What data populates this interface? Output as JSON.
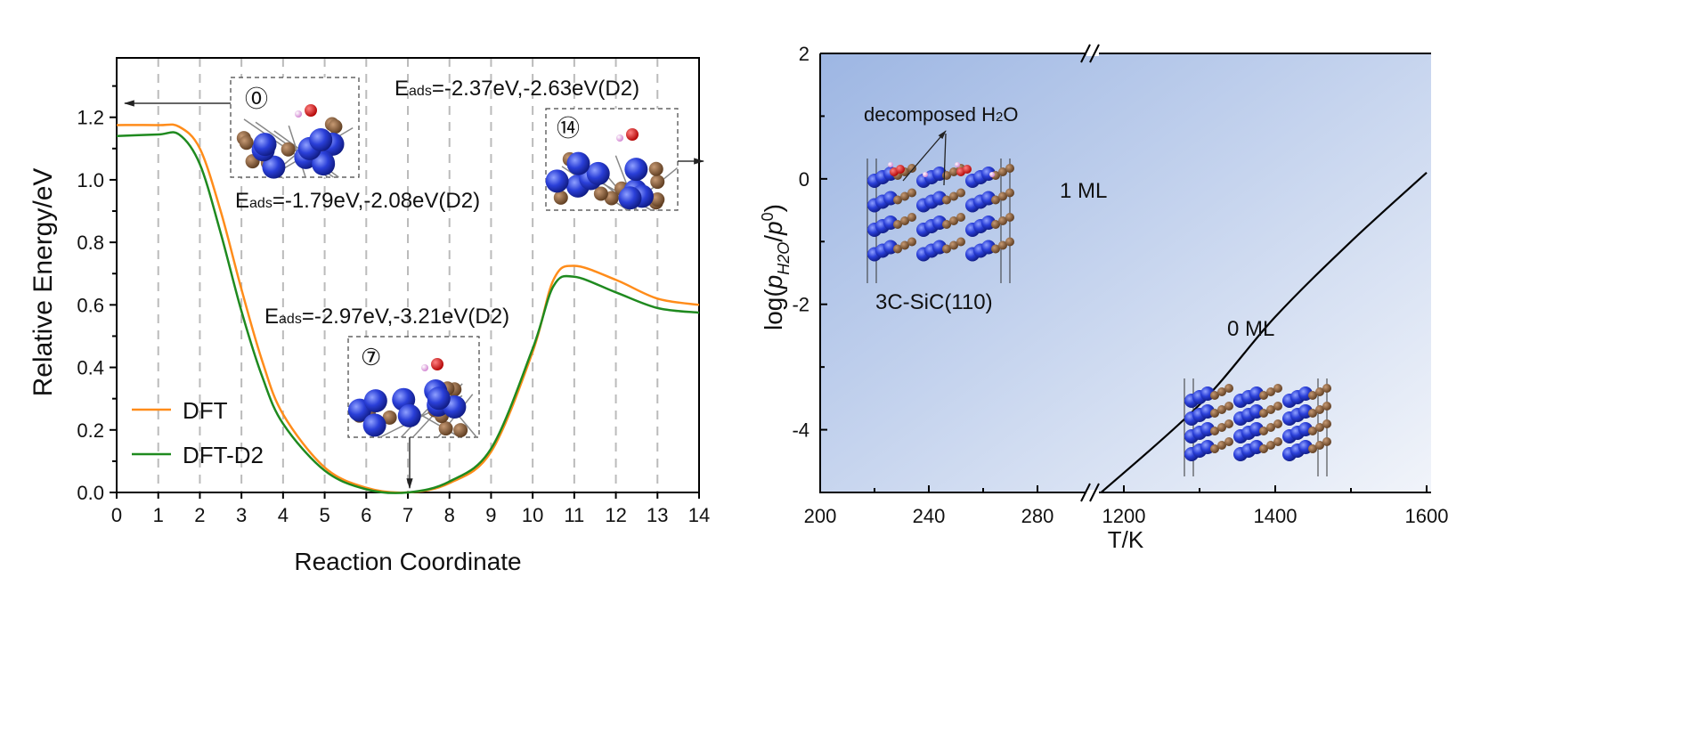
{
  "chart_data": [
    {
      "type": "line",
      "title": "",
      "xlabel": "Reaction Coordinate",
      "ylabel": "Relative Energy/eV",
      "xlim": [
        0,
        14
      ],
      "ylim": [
        0,
        1.39
      ],
      "xticks": [
        "0",
        "1",
        "2",
        "3",
        "4",
        "5",
        "6",
        "7",
        "8",
        "9",
        "10",
        "11",
        "12",
        "13",
        "14"
      ],
      "yticks": [
        "0.0",
        "0.2",
        "0.4",
        "0.6",
        "0.8",
        "1.0",
        "1.2"
      ],
      "grid": "vertical dashed at integer x",
      "legend": "bottom-left",
      "x": [
        0,
        1,
        1.5,
        2,
        2.5,
        3,
        3.5,
        4,
        5,
        6,
        7,
        8,
        9,
        10,
        10.5,
        11,
        12,
        13,
        14
      ],
      "series": [
        {
          "name": "DFT",
          "color": "#ff8c1a",
          "values": [
            1.175,
            1.175,
            1.17,
            1.1,
            0.9,
            0.65,
            0.42,
            0.25,
            0.08,
            0.015,
            0,
            0.03,
            0.13,
            0.45,
            0.68,
            0.725,
            0.68,
            0.62,
            0.6
          ]
        },
        {
          "name": "DFT-D2",
          "color": "#1f8a1f",
          "values": [
            1.14,
            1.145,
            1.145,
            1.05,
            0.83,
            0.58,
            0.37,
            0.22,
            0.07,
            0.01,
            0,
            0.035,
            0.14,
            0.46,
            0.66,
            0.69,
            0.64,
            0.59,
            0.575
          ]
        }
      ],
      "annotations": [
        {
          "label": "⓪",
          "energy_prefix": "E",
          "energy_sub": "ads",
          "energy_text": "=-1.79eV,-2.08eV(D2)"
        },
        {
          "label": "⑦",
          "energy_prefix": "E",
          "energy_sub": "ads",
          "energy_text": "=-2.97eV,-3.21eV(D2)"
        },
        {
          "label": "⑭",
          "energy_prefix": "E",
          "energy_sub": "ads",
          "energy_text": "=-2.37eV,-2.63eV(D2)"
        }
      ]
    },
    {
      "type": "area",
      "title": "",
      "xlabel": "T/K",
      "ylabel_parts": {
        "pre": "log(",
        "p": "p",
        "sub": "H2O",
        "slash": "/",
        "p0": "p",
        "sup": "0",
        "post": ")"
      },
      "xlim_segments": [
        [
          200,
          300
        ],
        [
          1160,
          1600
        ]
      ],
      "xticks": [
        "200",
        "240",
        "280",
        "1200",
        "1400",
        "1600"
      ],
      "ylim": [
        -5,
        2
      ],
      "yticks": [
        "-4",
        "-2",
        "0",
        "2"
      ],
      "boundary": {
        "T": [
          1170,
          1300,
          1400,
          1500,
          1600
        ],
        "logp": [
          -5,
          -3.6,
          -2.2,
          -1.0,
          0.1
        ]
      },
      "regions": [
        "1 ML",
        "0 ML"
      ],
      "inset_labels": {
        "decomposed": "decomposed H",
        "decomposed_sub": "2",
        "decomposed_post": "O",
        "surface": "3C-SiC(110)"
      },
      "colors": {
        "fill_dark": "#9db6e3",
        "fill_light": "#f1f4fa"
      }
    }
  ]
}
